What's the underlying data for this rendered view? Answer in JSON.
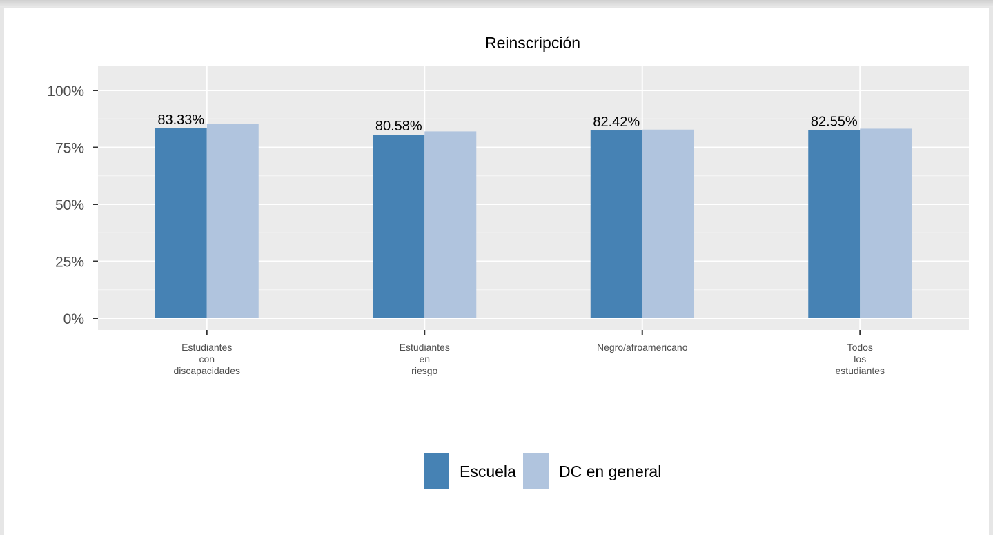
{
  "chart_data": {
    "type": "bar",
    "title": "Reinscripción",
    "xlabel": "",
    "ylabel": "",
    "ylim": [
      0,
      105
    ],
    "yticks": [
      0,
      25,
      50,
      75,
      100
    ],
    "ytick_labels": [
      "0%",
      "25%",
      "50%",
      "75%",
      "100%"
    ],
    "categories": [
      [
        "Estudiantes",
        "con",
        "discapacidades"
      ],
      [
        "Estudiantes",
        "en",
        "riesgo"
      ],
      [
        "Negro/afroamericano"
      ],
      [
        "Todos",
        "los",
        "estudiantes"
      ]
    ],
    "series": [
      {
        "name": "Escuela",
        "color": "#4682b4",
        "values": [
          83.33,
          80.58,
          82.42,
          82.55
        ],
        "labels": [
          "83.33%",
          "80.58%",
          "82.42%",
          "82.55%"
        ]
      },
      {
        "name": "DC en general",
        "color": "#b0c4de",
        "values": [
          85.3,
          82.0,
          82.8,
          83.2
        ]
      }
    ],
    "grid": true,
    "legend_position": "bottom",
    "panel_background": "#ebebeb"
  }
}
